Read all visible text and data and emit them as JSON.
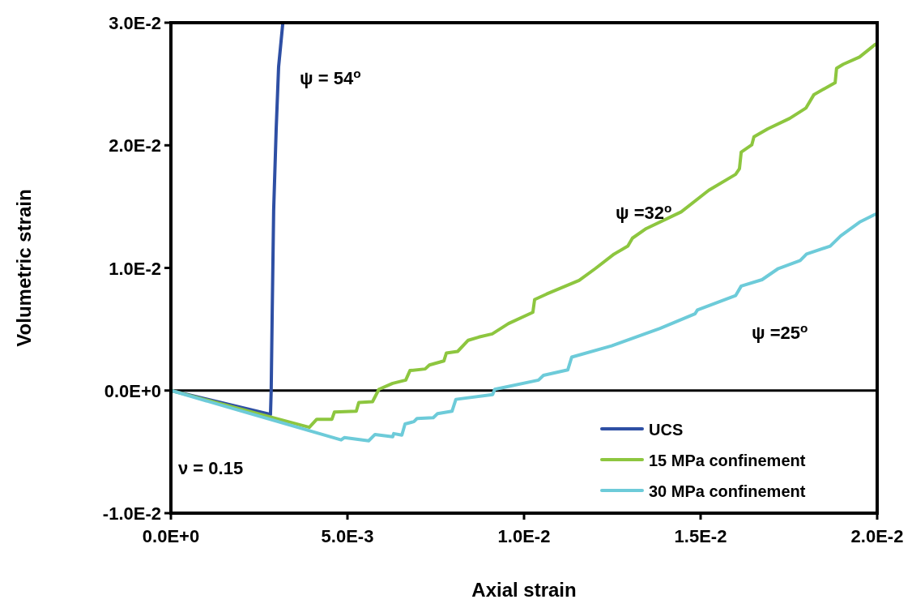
{
  "chart_data": {
    "type": "line",
    "xlabel": "Axial strain",
    "ylabel": "Volumetric strain",
    "xlim": [
      0,
      0.02
    ],
    "ylim": [
      -0.01,
      0.03
    ],
    "xticks": [
      {
        "value": 0,
        "label": "0.0E+0"
      },
      {
        "value": 0.005,
        "label": "5.0E-3"
      },
      {
        "value": 0.01,
        "label": "1.0E-2"
      },
      {
        "value": 0.015,
        "label": "1.5E-2"
      },
      {
        "value": 0.02,
        "label": "2.0E-2"
      }
    ],
    "yticks": [
      {
        "value": -0.01,
        "label": "-1.0E-2"
      },
      {
        "value": 0,
        "label": "0.0E+0"
      },
      {
        "value": 0.01,
        "label": "1.0E-2"
      },
      {
        "value": 0.02,
        "label": "2.0E-2"
      },
      {
        "value": 0.03,
        "label": "3.0E-2"
      }
    ],
    "grid": false,
    "legend": "bottom right",
    "line_style": "solid",
    "ref_lines": [
      {
        "axis": "y",
        "value": 0,
        "color": "#000000"
      }
    ],
    "annotations": [
      "ψ = 54$^{o}$",
      "ψ =32$^{o}$",
      "ψ =25$^{o}$",
      "ν = 0.15"
    ],
    "series": [
      {
        "name": "UCS",
        "color": "#2e4fa4",
        "x": [
          0,
          0.00282,
          0.00284,
          0.00287,
          0.00291,
          0.00298,
          0.00305,
          0.00317
        ],
        "values": [
          0,
          -0.00195,
          0,
          0.0066,
          0.0147,
          0.0212,
          0.0264,
          0.03
        ]
      },
      {
        "name": "15 MPa confinement",
        "color": "#8dc63f",
        "x": [
          0,
          0.00392,
          0.00413,
          0.00456,
          0.00463,
          0.00525,
          0.00532,
          0.00571,
          0.00589,
          0.00628,
          0.00665,
          0.00677,
          0.0072,
          0.00732,
          0.00773,
          0.0078,
          0.00812,
          0.00842,
          0.00872,
          0.0091,
          0.00956,
          0.01025,
          0.0103,
          0.01064,
          0.01156,
          0.01202,
          0.01255,
          0.01294,
          0.01307,
          0.01346,
          0.01445,
          0.01523,
          0.01599,
          0.0161,
          0.01615,
          0.01645,
          0.01651,
          0.0169,
          0.01752,
          0.01798,
          0.01821,
          0.01881,
          0.01885,
          0.01904,
          0.0195,
          0.01995
        ],
        "values": [
          0,
          -0.003,
          -0.00234,
          -0.00234,
          -0.00176,
          -0.00169,
          -0.00098,
          -0.00091,
          0.0001,
          0.00059,
          0.00085,
          0.00163,
          0.00176,
          0.00208,
          0.00241,
          0.00306,
          0.00319,
          0.0041,
          0.00436,
          0.00462,
          0.00546,
          0.00638,
          0.00742,
          0.00787,
          0.00898,
          0.00995,
          0.01113,
          0.01178,
          0.01243,
          0.01321,
          0.01457,
          0.01633,
          0.01763,
          0.01809,
          0.01945,
          0.02004,
          0.02069,
          0.02134,
          0.02219,
          0.02303,
          0.02414,
          0.02511,
          0.02628,
          0.02661,
          0.0272,
          0.02824
        ]
      },
      {
        "name": "30 MPa confinement",
        "color": "#6dcbd9",
        "x": [
          0,
          0.00482,
          0.00491,
          0.0056,
          0.00578,
          0.00628,
          0.00631,
          0.00654,
          0.00663,
          0.00688,
          0.00697,
          0.00743,
          0.00755,
          0.00796,
          0.00807,
          0.00911,
          0.00917,
          0.01041,
          0.01055,
          0.01124,
          0.01135,
          0.01248,
          0.01385,
          0.01484,
          0.01491,
          0.01599,
          0.01615,
          0.01674,
          0.0172,
          0.01782,
          0.018,
          0.01867,
          0.01897,
          0.0195,
          0.01995
        ],
        "values": [
          0,
          -0.00403,
          -0.00384,
          -0.0041,
          -0.00358,
          -0.00377,
          -0.00351,
          -0.00364,
          -0.00273,
          -0.00254,
          -0.00228,
          -0.00221,
          -0.00189,
          -0.00169,
          -0.00072,
          -0.00033,
          0.0001,
          0.00085,
          0.00124,
          0.00169,
          0.00273,
          0.00364,
          0.00507,
          0.00625,
          0.00657,
          0.00774,
          0.00852,
          0.00904,
          0.00995,
          0.0106,
          0.01113,
          0.01178,
          0.01262,
          0.01373,
          0.01438
        ]
      }
    ]
  }
}
